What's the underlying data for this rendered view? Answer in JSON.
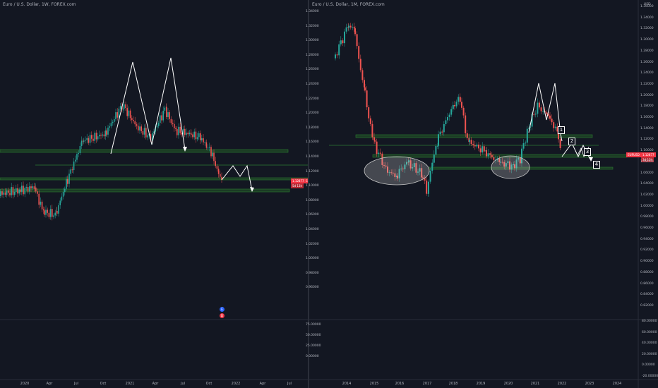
{
  "left_chart": {
    "title": "Euro / U.S. Dollar, 1W, FOREX.com",
    "symbol_tag": "EURUSD",
    "price_tag": "1.12877",
    "countdown_tag": "5d 13h",
    "x_axis": [
      "2020",
      "Apr",
      "Jul",
      "Oct",
      "2021",
      "Apr",
      "Jul",
      "Oct",
      "2022",
      "Apr",
      "Jul"
    ],
    "events": [
      "E",
      "D"
    ],
    "indicator_y_axis": [
      "75.00000",
      "50.00000",
      "25.00000",
      "0.00000"
    ]
  },
  "right_chart": {
    "title": "Euro / U.S. Dollar, 1M, FOREX.com",
    "currency": "USD",
    "symbol_tag": "EURUSD",
    "price_tag": "1.12877",
    "countdown_tag": "3d 13h",
    "y_axis": [
      "1.36000",
      "1.34000",
      "1.32000",
      "1.30000",
      "1.28000",
      "1.26000",
      "1.24000",
      "1.22000",
      "1.20000",
      "1.18000",
      "1.16000",
      "1.14000",
      "1.12000",
      "1.10000",
      "1.08000",
      "1.06000",
      "1.04000",
      "1.02000",
      "1.00000",
      "0.98000",
      "0.96000",
      "0.94000",
      "0.92000",
      "0.90000",
      "0.88000",
      "0.86000",
      "0.84000",
      "0.82000"
    ],
    "mid_y_axis": [
      "1.34000",
      "1.32000",
      "1.30000",
      "1.28000",
      "1.26000",
      "1.24000",
      "1.22000",
      "1.20000",
      "1.18000",
      "1.16000",
      "1.14000",
      "1.12000",
      "1.10000",
      "1.08000",
      "1.06000",
      "1.04000",
      "1.02000",
      "1.00000",
      "0.98000",
      "0.96000"
    ],
    "indicator_y_axis": [
      "80.00000",
      "60.00000",
      "40.00000",
      "20.00000",
      "0.00000",
      "-20.00000"
    ],
    "x_axis": [
      "2014",
      "2015",
      "2016",
      "2017",
      "2018",
      "2019",
      "2020",
      "2021",
      "2022",
      "2023",
      "2024"
    ],
    "steps": [
      "1",
      "2",
      "3",
      "4"
    ]
  },
  "colors": {
    "background": "#131722",
    "up": "#26a69a",
    "down": "#ef5350",
    "zone": "#2e7d32",
    "badge": "#f23645"
  }
}
